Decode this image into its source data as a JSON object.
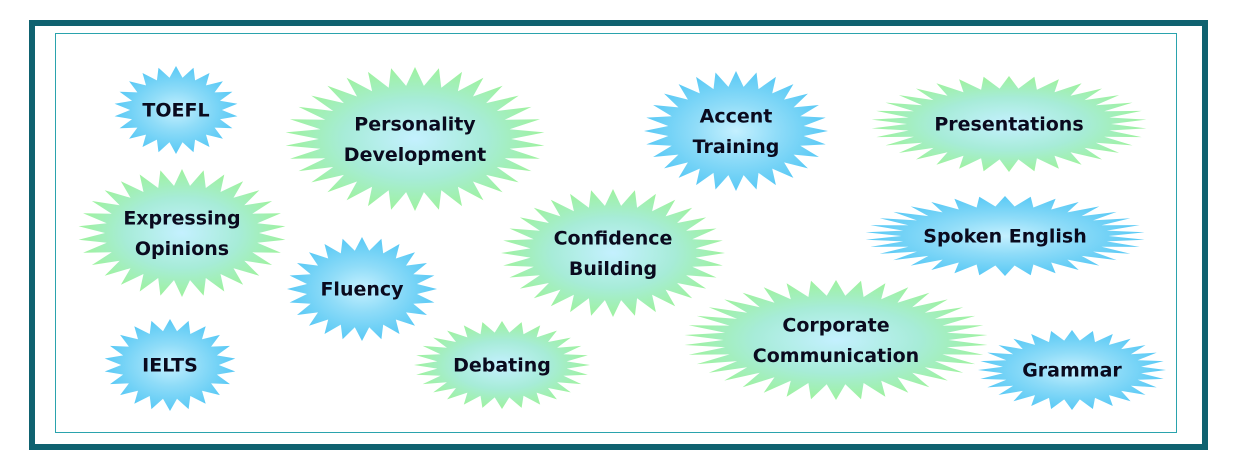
{
  "colors": {
    "frame_outer": "#0f6270",
    "frame_inner": "#2aa3ad",
    "green_fill": "#9ef29e",
    "blue_fill": "#59c9f5",
    "center_fill": "#c4f0ff",
    "text": "#0a0a1e"
  },
  "bursts": [
    {
      "id": "toefl",
      "label_lines": [
        "TOEFL"
      ],
      "color": "blue",
      "shape": "starburst"
    },
    {
      "id": "personality-development",
      "label_lines": [
        "Personality",
        "Development"
      ],
      "color": "green",
      "shape": "starburst"
    },
    {
      "id": "accent-training",
      "label_lines": [
        "Accent",
        "Training"
      ],
      "color": "blue",
      "shape": "starburst"
    },
    {
      "id": "presentations",
      "label_lines": [
        "Presentations"
      ],
      "color": "green",
      "shape": "starburst"
    },
    {
      "id": "expressing-opinions",
      "label_lines": [
        "Expressing",
        "Opinions"
      ],
      "color": "green",
      "shape": "starburst"
    },
    {
      "id": "confidence-building",
      "label_lines": [
        "Confidence",
        "Building"
      ],
      "color": "green",
      "shape": "starburst"
    },
    {
      "id": "spoken-english",
      "label_lines": [
        "Spoken English"
      ],
      "color": "blue",
      "shape": "starburst"
    },
    {
      "id": "fluency",
      "label_lines": [
        "Fluency"
      ],
      "color": "blue",
      "shape": "starburst"
    },
    {
      "id": "corporate-communication",
      "label_lines": [
        "Corporate",
        "Communication"
      ],
      "color": "green",
      "shape": "starburst"
    },
    {
      "id": "ielts",
      "label_lines": [
        "IELTS"
      ],
      "color": "blue",
      "shape": "starburst"
    },
    {
      "id": "debating",
      "label_lines": [
        "Debating"
      ],
      "color": "green",
      "shape": "starburst"
    },
    {
      "id": "grammar",
      "label_lines": [
        "Grammar"
      ],
      "color": "blue",
      "shape": "starburst"
    }
  ]
}
